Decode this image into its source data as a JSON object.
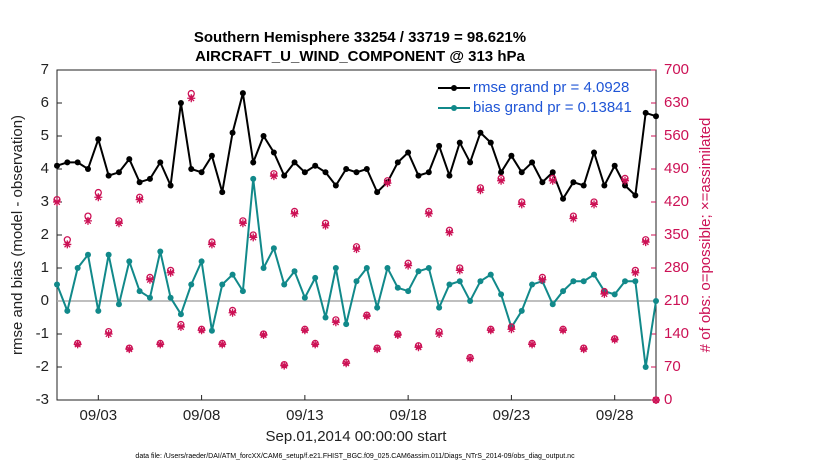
{
  "chart_data": {
    "type": "line",
    "title": [
      "Southern Hemisphere 33254 / 33719 = 98.621%",
      "AIRCRAFT_U_WIND_COMPONENT @ 313 hPa"
    ],
    "y_label": "rmse and bias (model - observation)",
    "y2_label": "# of obs: o=possible; ×=assimilated",
    "x_label": "Sep.01,2014 00:00:00 start",
    "footnote": "data file: /Users/raeder/DAI/ATM_forcXX/CAM6_setup/f.e21.FHIST_BGC.f09_025.CAM6assim.011/Diags_NTrS_2014-09/obs_diag_output.nc",
    "x": [
      1.0,
      1.5,
      2.0,
      2.5,
      3.0,
      3.5,
      4.0,
      4.5,
      5.0,
      5.5,
      6.0,
      6.5,
      7.0,
      7.5,
      8.0,
      8.5,
      9.0,
      9.5,
      10.0,
      10.5,
      11.0,
      11.5,
      12.0,
      12.5,
      13.0,
      13.5,
      14.0,
      14.5,
      15.0,
      15.5,
      16.0,
      16.5,
      17.0,
      17.5,
      18.0,
      18.5,
      19.0,
      19.5,
      20.0,
      20.5,
      21.0,
      21.5,
      22.0,
      22.5,
      23.0,
      23.5,
      24.0,
      24.5,
      25.0,
      25.5,
      26.0,
      26.5,
      27.0,
      27.5,
      28.0,
      28.5,
      29.0,
      29.5,
      30.0
    ],
    "xlim": [
      1,
      30
    ],
    "xticks": [
      {
        "value": 3,
        "label": "09/03"
      },
      {
        "value": 8,
        "label": "09/08"
      },
      {
        "value": 13,
        "label": "09/13"
      },
      {
        "value": 18,
        "label": "09/18"
      },
      {
        "value": 23,
        "label": "09/23"
      },
      {
        "value": 28,
        "label": "09/28"
      }
    ],
    "ylim": [
      -3,
      7
    ],
    "yticks": [
      -3,
      -2,
      -1,
      0,
      1,
      2,
      3,
      4,
      5,
      6,
      7
    ],
    "y2lim": [
      0,
      700
    ],
    "y2ticks": [
      0,
      70,
      140,
      210,
      280,
      350,
      420,
      490,
      560,
      630,
      700
    ],
    "zero_line_color": "#aaaaaa",
    "legend": "upper right",
    "series": [
      {
        "name": "rmse grand pr = 4.0928",
        "color": "#000000",
        "marker": "dot",
        "values": [
          4.1,
          4.2,
          4.2,
          4.0,
          4.9,
          3.8,
          3.9,
          4.3,
          3.6,
          3.7,
          4.2,
          3.5,
          6.0,
          4.0,
          3.9,
          4.4,
          3.3,
          5.1,
          6.3,
          4.2,
          5.0,
          4.5,
          3.8,
          4.2,
          3.9,
          4.1,
          3.9,
          3.5,
          4.0,
          3.9,
          4.0,
          3.3,
          3.6,
          4.2,
          4.5,
          3.8,
          3.9,
          4.7,
          3.8,
          4.8,
          4.2,
          5.1,
          4.8,
          3.9,
          4.4,
          3.9,
          4.2,
          3.6,
          3.9,
          3.1,
          3.6,
          3.5,
          4.5,
          3.5,
          4.1,
          3.5,
          3.2,
          5.7,
          5.6
        ]
      },
      {
        "name": "bias grand pr = 0.13841",
        "color": "#11898a",
        "marker": "dot",
        "values": [
          0.5,
          -0.3,
          1.0,
          1.4,
          -0.3,
          1.4,
          -0.1,
          1.2,
          0.3,
          0.1,
          1.5,
          0.1,
          -0.4,
          0.5,
          1.2,
          -0.9,
          0.5,
          0.8,
          0.3,
          3.7,
          1.0,
          1.6,
          0.5,
          0.9,
          0.1,
          0.7,
          -0.5,
          1.0,
          -0.7,
          0.6,
          1.0,
          -0.2,
          1.0,
          0.4,
          0.3,
          0.9,
          1.0,
          -0.2,
          0.5,
          0.6,
          0.0,
          0.6,
          0.8,
          0.2,
          -0.8,
          -0.3,
          0.5,
          0.6,
          -0.1,
          0.3,
          0.6,
          0.6,
          0.8,
          0.3,
          0.2,
          0.6,
          0.6,
          -2.0,
          0.0
        ]
      },
      {
        "axis": "y2",
        "color": "#cc1155",
        "marker": "circle",
        "values": [
          425,
          340,
          120,
          390,
          440,
          145,
          380,
          110,
          430,
          260,
          120,
          275,
          160,
          650,
          150,
          335,
          120,
          190,
          380,
          350,
          140,
          480,
          75,
          400,
          150,
          120,
          375,
          170,
          80,
          325,
          180,
          110,
          465,
          140,
          290,
          115,
          400,
          145,
          360,
          280,
          90,
          450,
          150,
          470,
          155,
          420,
          120,
          260,
          470,
          150,
          390,
          110,
          420,
          230,
          130,
          470,
          275,
          340,
          0
        ]
      },
      {
        "axis": "y2",
        "color": "#cc1155",
        "marker": "asterisk",
        "values": [
          420,
          330,
          118,
          380,
          430,
          140,
          375,
          108,
          425,
          255,
          118,
          270,
          155,
          640,
          148,
          330,
          118,
          185,
          375,
          345,
          138,
          475,
          73,
          395,
          148,
          118,
          370,
          165,
          78,
          320,
          178,
          108,
          460,
          138,
          285,
          112,
          395,
          140,
          355,
          275,
          88,
          445,
          148,
          465,
          150,
          415,
          118,
          255,
          465,
          148,
          385,
          108,
          415,
          225,
          128,
          465,
          270,
          335,
          0
        ]
      }
    ]
  }
}
